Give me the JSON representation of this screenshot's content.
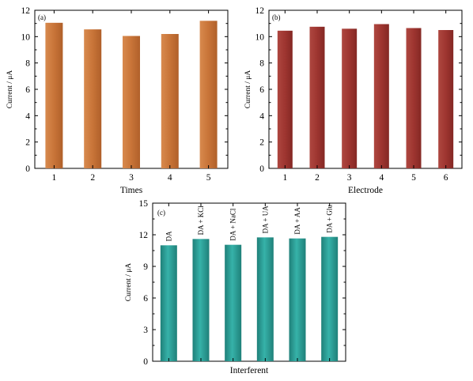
{
  "chart_data": [
    {
      "panel": "(a)",
      "type": "bar",
      "categories": [
        "1",
        "2",
        "3",
        "4",
        "5"
      ],
      "values": [
        11.05,
        10.55,
        10.05,
        10.2,
        11.2
      ],
      "xlabel": "Times",
      "ylabel": "Current / μA",
      "ylim": [
        0,
        12
      ],
      "yticks": [
        0,
        2,
        4,
        6,
        8,
        10,
        12
      ],
      "color": "#C87438"
    },
    {
      "panel": "(b)",
      "type": "bar",
      "categories": [
        "1",
        "2",
        "3",
        "4",
        "5",
        "6"
      ],
      "values": [
        10.45,
        10.75,
        10.6,
        10.95,
        10.65,
        10.5
      ],
      "xlabel": "Electrode",
      "ylabel": "Current / μA",
      "ylim": [
        0,
        12
      ],
      "yticks": [
        0,
        2,
        4,
        6,
        8,
        10,
        12
      ],
      "color": "#9E3530"
    },
    {
      "panel": "(c)",
      "type": "bar",
      "categories": [
        "DA",
        "DA + KCl",
        "DA + NaCl",
        "DA + UA",
        "DA + AA",
        "DA + Glu"
      ],
      "values": [
        11.0,
        11.6,
        11.05,
        11.75,
        11.65,
        11.8
      ],
      "xlabel": "Interferent",
      "ylabel": "Current / μA",
      "ylim": [
        0,
        15
      ],
      "yticks": [
        0,
        3,
        6,
        9,
        12,
        15
      ],
      "color": "#2A9E96"
    }
  ]
}
